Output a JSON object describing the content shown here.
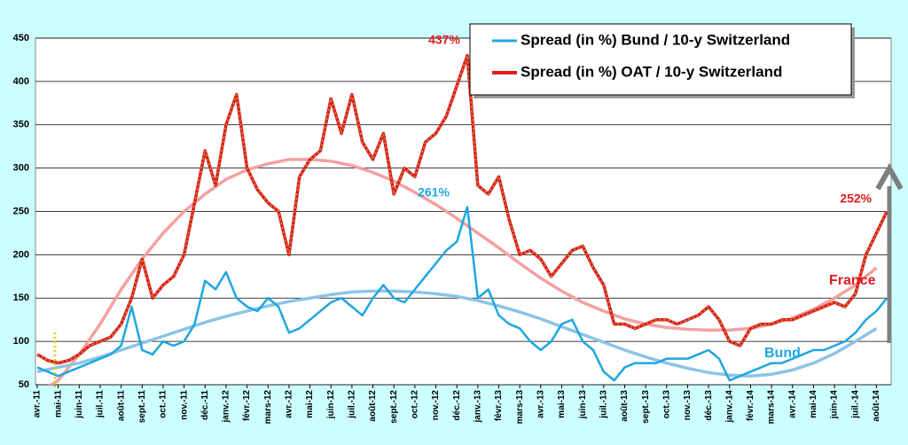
{
  "chart_data": {
    "type": "line",
    "categories": [
      "avr.-11",
      null,
      "mai-11",
      null,
      "juin-11",
      null,
      "juil.-11",
      null,
      "août-11",
      null,
      "sept.-11",
      null,
      "oct.-11",
      null,
      "nov.-11",
      null,
      "déc.-11",
      null,
      "janv.-12",
      null,
      "févr.-12",
      null,
      "mars-12",
      null,
      "avr.-12",
      null,
      "mai-12",
      null,
      "juin-12",
      null,
      "juil.-12",
      null,
      "août-12",
      null,
      "sept.-12",
      null,
      "oct.-12",
      null,
      "nov.-12",
      null,
      "déc.-12",
      null,
      "janv.-13",
      null,
      "févr.-13",
      null,
      "mars-13",
      null,
      "avr.-13",
      null,
      "mai-13",
      null,
      "juin-13",
      null,
      "juil.-13",
      null,
      "août-13",
      null,
      "sept.-13",
      null,
      "oct.-13",
      null,
      "nov.-13",
      null,
      "déc.-13",
      null,
      "janv.-14",
      null,
      "févr.-14",
      null,
      "mars-14",
      null,
      "avr.-14",
      null,
      "mai-14",
      null,
      "juin-14",
      null,
      "juil.-14",
      null,
      "août-14",
      null
    ],
    "series": [
      {
        "name": "Spread (in %) Bund / 10-y Switzerland",
        "color": "#1ea7e1",
        "values": [
          70,
          65,
          60,
          65,
          70,
          75,
          80,
          85,
          95,
          140,
          90,
          85,
          100,
          95,
          100,
          120,
          170,
          160,
          180,
          150,
          140,
          135,
          150,
          140,
          110,
          115,
          125,
          135,
          145,
          150,
          140,
          130,
          150,
          165,
          150,
          145,
          160,
          175,
          190,
          205,
          215,
          255,
          150,
          160,
          130,
          120,
          115,
          100,
          90,
          100,
          120,
          125,
          100,
          90,
          65,
          55,
          70,
          75,
          75,
          75,
          80,
          80,
          80,
          85,
          90,
          80,
          55,
          60,
          65,
          70,
          75,
          75,
          80,
          85,
          90,
          90,
          95,
          100,
          110,
          125,
          135,
          150
        ]
      },
      {
        "name": "Spread (in %) OAT / 10-y Switzerland",
        "color": "#e31a1c",
        "values": [
          85,
          78,
          75,
          78,
          85,
          95,
          100,
          105,
          120,
          150,
          195,
          150,
          165,
          175,
          200,
          260,
          320,
          280,
          350,
          385,
          300,
          275,
          260,
          250,
          200,
          290,
          310,
          320,
          380,
          340,
          385,
          330,
          310,
          340,
          270,
          300,
          290,
          330,
          340,
          360,
          395,
          430,
          280,
          270,
          290,
          240,
          200,
          205,
          195,
          175,
          190,
          205,
          210,
          185,
          165,
          120,
          120,
          115,
          120,
          125,
          125,
          120,
          125,
          130,
          140,
          125,
          100,
          95,
          115,
          120,
          120,
          125,
          125,
          130,
          135,
          140,
          145,
          140,
          155,
          200,
          225,
          250
        ]
      }
    ],
    "trends": [
      {
        "color": "#f4a0a0",
        "values": [
          40,
          55,
          85,
          120,
          160,
          195,
          225,
          250,
          270,
          287,
          298,
          305,
          310,
          310,
          308,
          303,
          295,
          285,
          272,
          258,
          242,
          225,
          208,
          190,
          173,
          158,
          145,
          135,
          126,
          120,
          116,
          114,
          113,
          113,
          115,
          120,
          127,
          137,
          150,
          165,
          185
        ]
      },
      {
        "color": "#8cc4e6",
        "values": [
          65,
          70,
          75,
          82,
          90,
          98,
          106,
          114,
          122,
          129,
          135,
          141,
          146,
          150,
          154,
          157,
          158,
          158,
          157,
          155,
          152,
          147,
          141,
          134,
          126,
          117,
          108,
          99,
          90,
          82,
          75,
          69,
          64,
          61,
          60,
          62,
          67,
          75,
          86,
          100,
          115
        ]
      }
    ],
    "annotations": [
      {
        "label": "437%",
        "value": 437,
        "index": 41,
        "color": "#e31a1c"
      },
      {
        "label": "261%",
        "value": 261,
        "index": 41,
        "color": "#1ea7e1"
      },
      {
        "label": "252%",
        "value": 252,
        "index": 81,
        "color": "#e31a1c"
      }
    ],
    "text_labels": [
      {
        "text": "France",
        "color": "#e31a1c"
      },
      {
        "text": "Bund",
        "color": "#1ea7e1"
      }
    ],
    "ylim": [
      50,
      450
    ],
    "yticks": [
      50,
      100,
      150,
      200,
      250,
      300,
      350,
      400,
      450
    ],
    "grid": true
  }
}
